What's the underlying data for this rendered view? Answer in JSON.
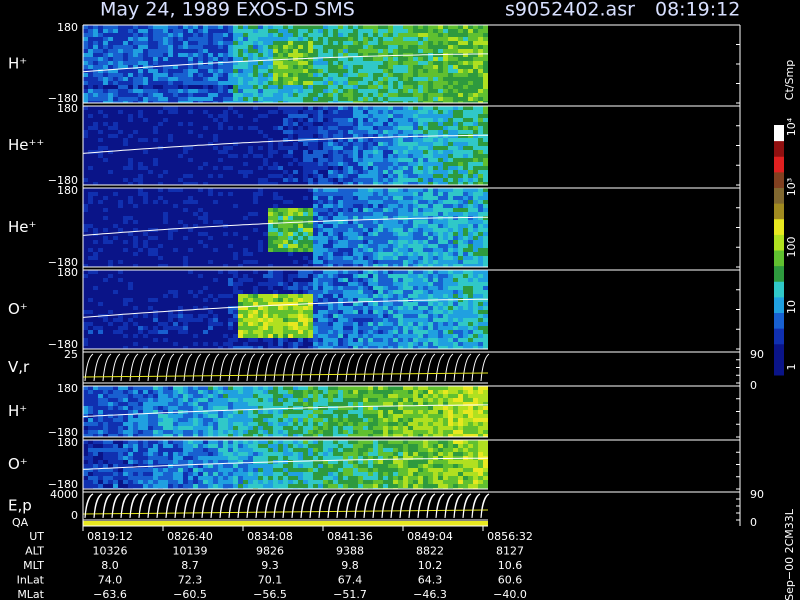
{
  "header": {
    "title": "May 24, 1989   EXOS-D SMS",
    "file": "s9052402.asr",
    "time": "08:19:12"
  },
  "panels": [
    {
      "label": "H⁺",
      "ticks": [
        "180",
        "−180"
      ]
    },
    {
      "label": "He⁺⁺",
      "ticks": [
        "180",
        "−180"
      ]
    },
    {
      "label": "He⁺",
      "ticks": [
        "180",
        "−180"
      ]
    },
    {
      "label": "O⁺",
      "ticks": [
        "180",
        "−180"
      ]
    },
    {
      "label": "V,r",
      "ticks": [
        "25"
      ],
      "right_ticks": [
        "90",
        "0"
      ]
    },
    {
      "label": "H⁺",
      "ticks": [
        "180",
        "−180"
      ]
    },
    {
      "label": "O⁺",
      "ticks": [
        "180",
        "−180"
      ]
    },
    {
      "label": "E,p",
      "ticks": [
        "4000",
        "0"
      ],
      "right_ticks": [
        "90",
        "0"
      ]
    }
  ],
  "qa_label": "QA",
  "colorbar": {
    "unit": "Ct/Smp",
    "ticks": [
      "1",
      "10",
      "100",
      "10³",
      "10⁴"
    ]
  },
  "footer": "Sep−00 2CM33L",
  "ephemeris": [
    {
      "label": "UT",
      "values": [
        "0819:12",
        "0826:40",
        "0834:08",
        "0841:36",
        "0849:04",
        "0856:32"
      ]
    },
    {
      "label": "ALT",
      "values": [
        "10326",
        "10139",
        "9826",
        "9388",
        "8822",
        "8127"
      ]
    },
    {
      "label": "MLT",
      "values": [
        "8.0",
        "8.7",
        "9.3",
        "9.8",
        "10.2",
        "10.6"
      ]
    },
    {
      "label": "InLat",
      "values": [
        "74.0",
        "72.3",
        "70.1",
        "67.4",
        "64.3",
        "60.6"
      ]
    },
    {
      "label": "MLat",
      "values": [
        "−63.6",
        "−60.5",
        "−56.5",
        "−51.7",
        "−46.3",
        "−40.0"
      ]
    }
  ]
}
